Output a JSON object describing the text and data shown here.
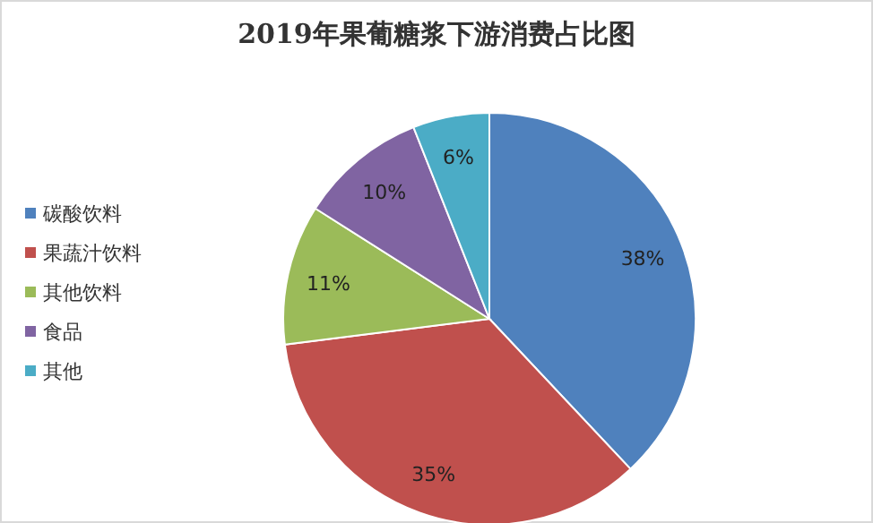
{
  "chart_data": {
    "type": "pie",
    "title": "2019年果葡糖浆下游消费占比图",
    "categories": [
      "碳酸饮料",
      "果蔬汁饮料",
      "其他饮料",
      "食品",
      "其他"
    ],
    "values": [
      38,
      35,
      11,
      10,
      6
    ],
    "colors": [
      "#4f81bd",
      "#c0504d",
      "#9bbb59",
      "#8064a2",
      "#4bacc6"
    ],
    "value_labels": [
      "38%",
      "35%",
      "11%",
      "10%",
      "6%"
    ],
    "legend": "left"
  }
}
